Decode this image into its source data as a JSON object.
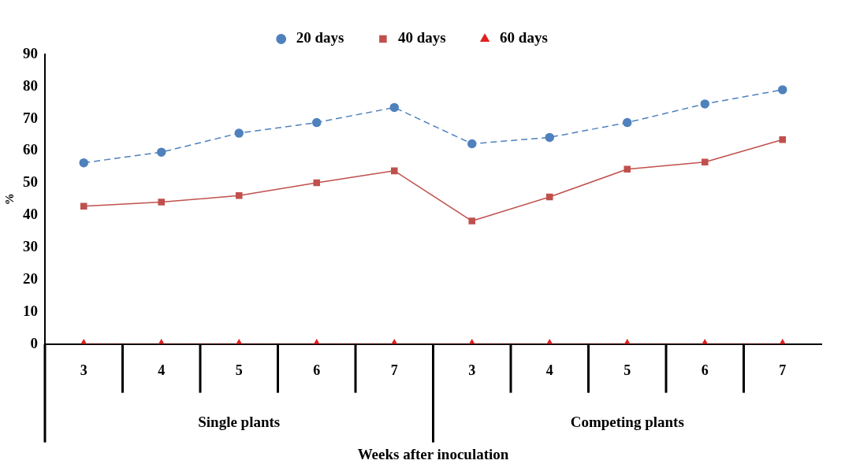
{
  "chart_data": {
    "type": "line",
    "categories": [
      "3",
      "4",
      "5",
      "6",
      "7",
      "3",
      "4",
      "5",
      "6",
      "7"
    ],
    "xlabel": "Weeks after inoculation",
    "ylabel": "%",
    "ylim": [
      0,
      90
    ],
    "yticks": [
      0,
      10,
      20,
      30,
      40,
      50,
      60,
      70,
      80,
      90
    ],
    "grid": false,
    "legend": "top",
    "annotations": [
      "Single plants",
      "Competing plants"
    ],
    "series": [
      {
        "name": "20 days",
        "color": "#4f81bd",
        "marker": "circle",
        "line_style": "dashed",
        "values": [
          56.3,
          59.6,
          65.5,
          68.8,
          73.5,
          62.2,
          64.2,
          68.8,
          74.6,
          79.0
        ]
      },
      {
        "name": "40 days",
        "color": "#c0504d",
        "marker": "square",
        "line_style": "solid",
        "values": [
          42.8,
          44.1,
          46.1,
          50.1,
          53.8,
          38.2,
          45.7,
          54.3,
          56.5,
          63.5
        ]
      },
      {
        "name": "60 days",
        "color": "#e02020",
        "marker": "triangle",
        "line_style": "dotted",
        "values": [
          0,
          0,
          0,
          0,
          0,
          0,
          0,
          0,
          0,
          0
        ]
      }
    ]
  }
}
